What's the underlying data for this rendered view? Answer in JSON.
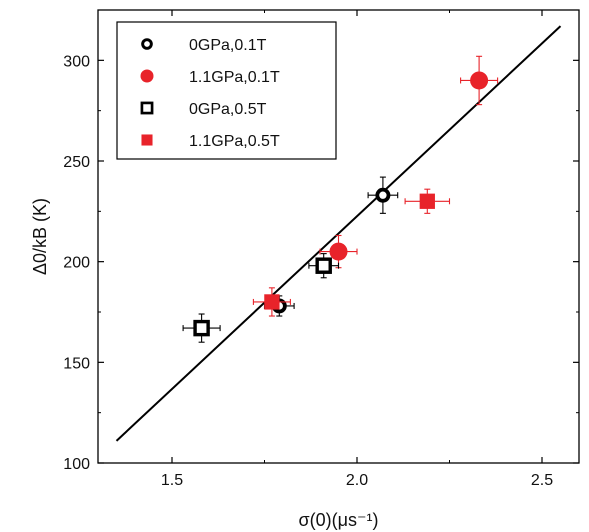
{
  "chart_data": {
    "type": "scatter",
    "xlabel": "σ(0)(μs⁻¹)",
    "ylabel": "Δ0/kB (K)",
    "xlim": [
      1.3,
      2.6
    ],
    "ylim": [
      100,
      325
    ],
    "xticks": [
      1.5,
      2.0,
      2.5
    ],
    "yticks": [
      100,
      150,
      200,
      250,
      300
    ],
    "grid": false,
    "legend_position": "top-left",
    "series": [
      {
        "name": "0GPa,0.1T",
        "marker": "open-circle",
        "color": "#000000",
        "points": [
          {
            "x": 1.79,
            "y": 178,
            "xerr": 0.04,
            "yerr": 5
          },
          {
            "x": 2.07,
            "y": 233,
            "xerr": 0.04,
            "yerr": 9
          }
        ]
      },
      {
        "name": "1.1GPa,0.1T",
        "marker": "filled-circle",
        "color": "#e8232a",
        "points": [
          {
            "x": 1.95,
            "y": 205,
            "xerr": 0.05,
            "yerr": 8
          },
          {
            "x": 2.33,
            "y": 290,
            "xerr": 0.05,
            "yerr": 12
          }
        ]
      },
      {
        "name": "0GPa,0.5T",
        "marker": "open-square",
        "color": "#000000",
        "points": [
          {
            "x": 1.58,
            "y": 167,
            "xerr": 0.05,
            "yerr": 7
          },
          {
            "x": 1.91,
            "y": 198,
            "xerr": 0.04,
            "yerr": 6
          }
        ]
      },
      {
        "name": "1.1GPa,0.5T",
        "marker": "filled-square",
        "color": "#e8232a",
        "points": [
          {
            "x": 1.77,
            "y": 180,
            "xerr": 0.05,
            "yerr": 7
          },
          {
            "x": 2.19,
            "y": 230,
            "xerr": 0.06,
            "yerr": 6
          }
        ]
      }
    ],
    "fit_line": {
      "x": [
        1.35,
        2.55
      ],
      "y": [
        111,
        317
      ],
      "color": "#000000"
    }
  }
}
